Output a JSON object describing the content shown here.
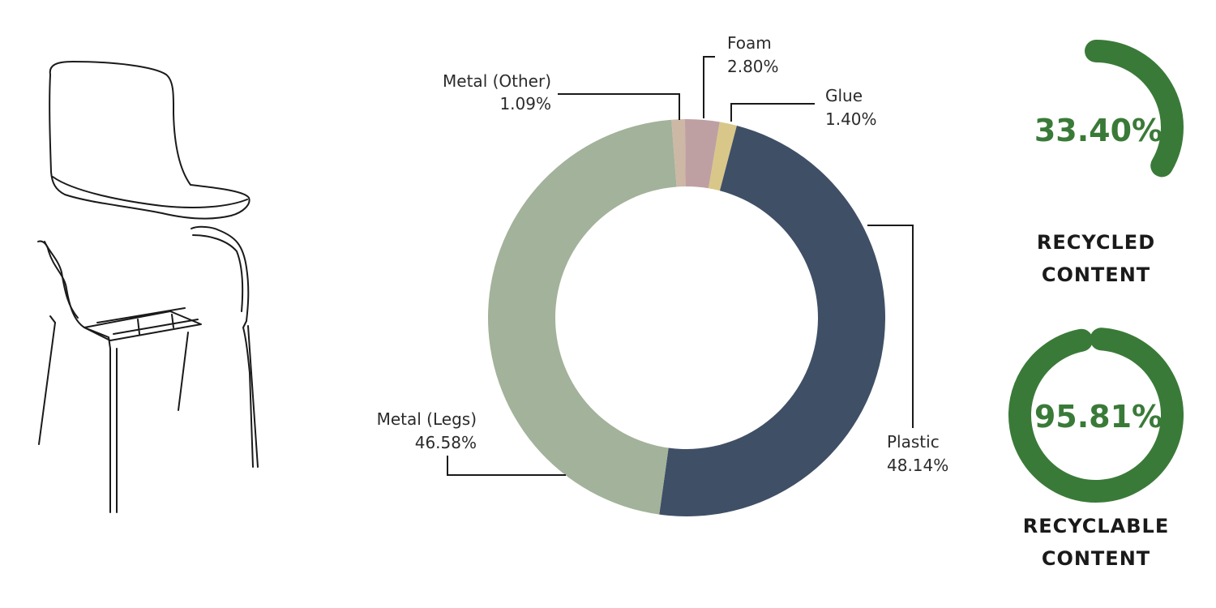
{
  "chart_data": [
    {
      "type": "pie",
      "donut": true,
      "categories": [
        "Metal (Other)",
        "Foam",
        "Glue",
        "Plastic",
        "Metal (Legs)"
      ],
      "values": [
        1.09,
        2.8,
        1.4,
        48.14,
        46.58
      ],
      "value_labels": [
        "1.09%",
        "2.80%",
        "1.40%",
        "48.14%",
        "46.58%"
      ],
      "colors": [
        "#cdb8a5",
        "#bfa0a2",
        "#d8c788",
        "#3f4f66",
        "#a3b29a"
      ],
      "legend": "none"
    },
    {
      "type": "gauge",
      "value": 33.4,
      "value_label": "33.40%",
      "caption": [
        "RECYCLED",
        "CONTENT"
      ],
      "color": "#3a7a38"
    },
    {
      "type": "gauge",
      "value": 95.81,
      "value_label": "95.81%",
      "caption": [
        "RECYCLABLE",
        "CONTENT"
      ],
      "color": "#3a7a38"
    }
  ]
}
